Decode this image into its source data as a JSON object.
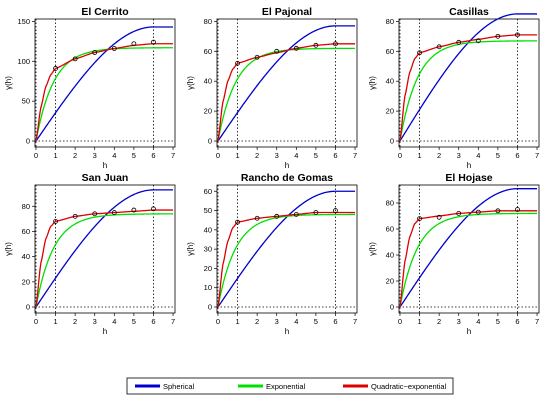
{
  "legend": {
    "items": [
      {
        "label": "Spherical",
        "color": "#0000cc"
      },
      {
        "label": "Exponential",
        "color": "#00e000"
      },
      {
        "label": "Quadratic−exponential",
        "color": "#dd0000"
      }
    ]
  },
  "chart_data": [
    {
      "type": "line",
      "title": "El Cerrito",
      "xlabel": "h",
      "ylabel": "γ(h)",
      "xlim": [
        0,
        7
      ],
      "ylim": [
        0,
        150
      ],
      "xticks": [
        "0",
        "1",
        "2",
        "3",
        "4",
        "5",
        "6",
        "7"
      ],
      "yticks": [
        0,
        50,
        100,
        150
      ],
      "vlines": [
        1,
        6
      ],
      "points": {
        "x": [
          1,
          2,
          3,
          4,
          5,
          6
        ],
        "y": [
          91,
          103,
          111,
          116,
          122,
          124
        ]
      },
      "series": [
        {
          "name": "Spherical",
          "model": "spherical",
          "nugget": 0,
          "sill": 143,
          "range": 6
        },
        {
          "name": "Exponential",
          "model": "exponential",
          "nugget": 0,
          "sill": 117,
          "range": 0.9
        },
        {
          "name": "Quadratic−exponential",
          "model": "quadexp",
          "points": [
            [
              0,
              0
            ],
            [
              0.25,
              42
            ],
            [
              0.5,
              68
            ],
            [
              0.75,
              83
            ],
            [
              1,
              91
            ],
            [
              2,
              103
            ],
            [
              3,
              111
            ],
            [
              4,
              116
            ],
            [
              5,
              120
            ],
            [
              6,
              122
            ],
            [
              7,
              122
            ]
          ]
        }
      ]
    },
    {
      "type": "line",
      "title": "El Pajonal",
      "xlabel": "h",
      "ylabel": "γ(h)",
      "xlim": [
        0,
        7
      ],
      "ylim": [
        0,
        80
      ],
      "xticks": [
        "0",
        "1",
        "2",
        "3",
        "4",
        "5",
        "6",
        "7"
      ],
      "yticks": [
        0,
        20,
        40,
        60,
        80
      ],
      "vlines": [
        1,
        6
      ],
      "points": {
        "x": [
          1,
          2,
          3,
          4,
          5,
          6
        ],
        "y": [
          52,
          56,
          60,
          62,
          64,
          65
        ]
      },
      "series": [
        {
          "name": "Spherical",
          "model": "spherical",
          "nugget": 0,
          "sill": 77,
          "range": 6
        },
        {
          "name": "Exponential",
          "model": "exponential",
          "nugget": 0,
          "sill": 62,
          "range": 0.9
        },
        {
          "name": "Quadratic−exponential",
          "model": "quadexp",
          "points": [
            [
              0,
              0
            ],
            [
              0.25,
              26
            ],
            [
              0.5,
              40
            ],
            [
              0.75,
              48
            ],
            [
              1,
              52
            ],
            [
              2,
              56
            ],
            [
              3,
              59
            ],
            [
              4,
              62
            ],
            [
              5,
              64
            ],
            [
              6,
              65
            ],
            [
              7,
              65
            ]
          ]
        }
      ]
    },
    {
      "type": "line",
      "title": "Casillas",
      "xlabel": "h",
      "ylabel": "γ(h)",
      "xlim": [
        0,
        7
      ],
      "ylim": [
        0,
        80
      ],
      "xticks": [
        "0",
        "1",
        "2",
        "3",
        "4",
        "5",
        "6",
        "7"
      ],
      "yticks": [
        0,
        20,
        40,
        60,
        80
      ],
      "vlines": [
        1,
        6
      ],
      "points": {
        "x": [
          1,
          2,
          3,
          4,
          5,
          6
        ],
        "y": [
          59,
          63,
          66,
          67,
          70,
          71
        ]
      },
      "series": [
        {
          "name": "Spherical",
          "model": "spherical",
          "nugget": 0,
          "sill": 85,
          "range": 6
        },
        {
          "name": "Exponential",
          "model": "exponential",
          "nugget": 0,
          "sill": 67,
          "range": 0.9
        },
        {
          "name": "Quadratic−exponential",
          "model": "quadexp",
          "points": [
            [
              0,
              0
            ],
            [
              0.25,
              30
            ],
            [
              0.5,
              46
            ],
            [
              0.75,
              55
            ],
            [
              1,
              59
            ],
            [
              2,
              63
            ],
            [
              3,
              66
            ],
            [
              4,
              68
            ],
            [
              5,
              70
            ],
            [
              6,
              71
            ],
            [
              7,
              71
            ]
          ]
        }
      ]
    },
    {
      "type": "line",
      "title": "San Juan",
      "xlabel": "h",
      "ylabel": "γ(h)",
      "xlim": [
        0,
        7
      ],
      "ylim": [
        0,
        95
      ],
      "xticks": [
        "0",
        "1",
        "2",
        "3",
        "4",
        "5",
        "6",
        "7"
      ],
      "yticks": [
        0,
        20,
        40,
        60,
        80
      ],
      "vlines": [
        1,
        6
      ],
      "points": {
        "x": [
          1,
          2,
          3,
          4,
          5,
          6
        ],
        "y": [
          68,
          72,
          74,
          75,
          77,
          78
        ]
      },
      "series": [
        {
          "name": "Spherical",
          "model": "spherical",
          "nugget": 0,
          "sill": 93,
          "range": 6
        },
        {
          "name": "Exponential",
          "model": "exponential",
          "nugget": 0,
          "sill": 74,
          "range": 0.9
        },
        {
          "name": "Quadratic−exponential",
          "model": "quadexp",
          "points": [
            [
              0,
              0
            ],
            [
              0.25,
              35
            ],
            [
              0.5,
              54
            ],
            [
              0.75,
              64
            ],
            [
              1,
              68
            ],
            [
              2,
              72
            ],
            [
              3,
              74
            ],
            [
              4,
              75
            ],
            [
              5,
              76
            ],
            [
              6,
              77
            ],
            [
              7,
              77
            ]
          ]
        }
      ]
    },
    {
      "type": "line",
      "title": "Rancho de Gomas",
      "xlabel": "h",
      "ylabel": "γ(h)",
      "xlim": [
        0,
        7
      ],
      "ylim": [
        0,
        62
      ],
      "xticks": [
        "0",
        "1",
        "2",
        "3",
        "4",
        "5",
        "6",
        "7"
      ],
      "yticks": [
        0,
        10,
        20,
        30,
        40,
        50,
        60
      ],
      "vlines": [
        1,
        6
      ],
      "points": {
        "x": [
          1,
          2,
          3,
          4,
          5,
          6
        ],
        "y": [
          44,
          46,
          47,
          48,
          49,
          50
        ]
      },
      "series": [
        {
          "name": "Spherical",
          "model": "spherical",
          "nugget": 0,
          "sill": 60,
          "range": 6
        },
        {
          "name": "Exponential",
          "model": "exponential",
          "nugget": 0,
          "sill": 48,
          "range": 0.9
        },
        {
          "name": "Quadratic−exponential",
          "model": "quadexp",
          "points": [
            [
              0,
              0
            ],
            [
              0.25,
              22
            ],
            [
              0.5,
              34
            ],
            [
              0.75,
              41
            ],
            [
              1,
              44
            ],
            [
              2,
              46
            ],
            [
              3,
              47
            ],
            [
              4,
              48
            ],
            [
              5,
              49
            ],
            [
              6,
              49
            ],
            [
              7,
              49
            ]
          ]
        }
      ]
    },
    {
      "type": "line",
      "title": "El Hojase",
      "xlabel": "h",
      "ylabel": "γ(h)",
      "xlim": [
        0,
        7
      ],
      "ylim": [
        0,
        92
      ],
      "xticks": [
        "0",
        "1",
        "2",
        "3",
        "4",
        "5",
        "6",
        "7"
      ],
      "yticks": [
        0,
        20,
        40,
        60,
        80
      ],
      "vlines": [
        1,
        6
      ],
      "points": {
        "x": [
          1,
          2,
          3,
          4,
          5,
          6
        ],
        "y": [
          68,
          69,
          72,
          73,
          74,
          75
        ]
      },
      "series": [
        {
          "name": "Spherical",
          "model": "spherical",
          "nugget": 0,
          "sill": 91,
          "range": 6
        },
        {
          "name": "Exponential",
          "model": "exponential",
          "nugget": 0,
          "sill": 72,
          "range": 0.9
        },
        {
          "name": "Quadratic−exponential",
          "model": "quadexp",
          "points": [
            [
              0,
              0
            ],
            [
              0.25,
              35
            ],
            [
              0.5,
              54
            ],
            [
              0.75,
              64
            ],
            [
              1,
              68
            ],
            [
              2,
              70
            ],
            [
              3,
              72
            ],
            [
              4,
              73
            ],
            [
              5,
              74
            ],
            [
              6,
              74
            ],
            [
              7,
              74
            ]
          ]
        }
      ]
    }
  ]
}
